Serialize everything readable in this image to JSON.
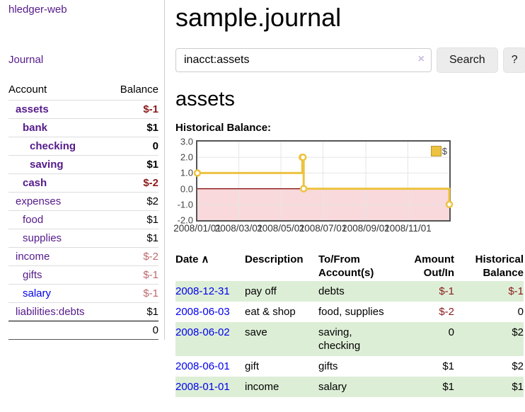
{
  "colors": {
    "link_purple": "#551a8b",
    "link_blue": "#0000ee",
    "negative_strong": "#8b1a1a",
    "negative_soft": "#bd6a6e",
    "row_green": "#ddeed6",
    "series_gold": "#edc240",
    "negative_region_pink": "#f9d9db",
    "zero_line_red": "#800000",
    "grid_gray": "#e6e6e6"
  },
  "sidebar": {
    "brand": "hledger-web",
    "nav": [
      {
        "label": "Journal"
      }
    ],
    "accounts_table": {
      "headers": {
        "account": "Account",
        "balance": "Balance"
      },
      "rows": [
        {
          "account": "assets",
          "indent": 1,
          "bold": true,
          "balance": "$-1",
          "balance_tone": "neg-strong",
          "link_color": "purple"
        },
        {
          "account": "bank",
          "indent": 2,
          "bold": true,
          "balance": "$1",
          "balance_tone": "pos",
          "link_color": "purple"
        },
        {
          "account": "checking",
          "indent": 3,
          "bold": true,
          "balance": "0",
          "balance_tone": "pos",
          "link_color": "purple"
        },
        {
          "account": "saving",
          "indent": 3,
          "bold": true,
          "balance": "$1",
          "balance_tone": "pos",
          "link_color": "purple"
        },
        {
          "account": "cash",
          "indent": 2,
          "bold": true,
          "balance": "$-2",
          "balance_tone": "neg-strong",
          "link_color": "purple"
        },
        {
          "account": "expenses",
          "indent": 1,
          "bold": false,
          "balance": "$2",
          "balance_tone": "pos",
          "link_color": "purple"
        },
        {
          "account": "food",
          "indent": 2,
          "bold": false,
          "balance": "$1",
          "balance_tone": "pos",
          "link_color": "purple"
        },
        {
          "account": "supplies",
          "indent": 2,
          "bold": false,
          "balance": "$1",
          "balance_tone": "pos",
          "link_color": "purple"
        },
        {
          "account": "income",
          "indent": 1,
          "bold": false,
          "balance": "$-2",
          "balance_tone": "neg-soft",
          "link_color": "purple"
        },
        {
          "account": "gifts",
          "indent": 2,
          "bold": false,
          "balance": "$-1",
          "balance_tone": "neg-soft",
          "link_color": "purple"
        },
        {
          "account": "salary",
          "indent": 2,
          "bold": false,
          "balance": "$-1",
          "balance_tone": "neg-soft",
          "link_color": "blue"
        },
        {
          "account": "liabilities:debts",
          "indent": 1,
          "bold": false,
          "balance": "$1",
          "balance_tone": "pos",
          "link_color": "purple"
        }
      ],
      "total": "0"
    }
  },
  "main": {
    "title": "sample.journal",
    "search": {
      "value": "inacct:assets",
      "clear_icon": "×",
      "button": "Search",
      "help_button": "?"
    },
    "account_heading": "assets",
    "chart_title": "Historical Balance:",
    "register": {
      "headers": {
        "date": "Date",
        "sort_icon": "∧",
        "description": "Description",
        "accounts": "To/From Account(s)",
        "amount": "Amount Out/In",
        "balance": "Historical Balance"
      },
      "rows": [
        {
          "date": "2008-12-31",
          "description": "pay off",
          "accounts": "debts",
          "amount": "$-1",
          "balance": "$-1",
          "shaded": true
        },
        {
          "date": "2008-06-03",
          "description": "eat & shop",
          "accounts": "food, supplies",
          "amount": "$-2",
          "balance": "0",
          "shaded": false
        },
        {
          "date": "2008-06-02",
          "description": "save",
          "accounts": "saving, checking",
          "amount": "0",
          "balance": "$2",
          "shaded": true
        },
        {
          "date": "2008-06-01",
          "description": "gift",
          "accounts": "gifts",
          "amount": "$1",
          "balance": "$2",
          "shaded": false
        },
        {
          "date": "2008-01-01",
          "description": "income",
          "accounts": "salary",
          "amount": "$1",
          "balance": "$1",
          "shaded": true
        }
      ]
    }
  },
  "chart_data": {
    "type": "line",
    "title": "Historical Balance",
    "step": true,
    "legend": [
      {
        "label": "$",
        "color": "#edc240"
      }
    ],
    "legend_position": "top-right",
    "points": [
      {
        "date": "2008-01-01",
        "value": 1
      },
      {
        "date": "2008-06-01",
        "value": 2
      },
      {
        "date": "2008-06-02",
        "value": 2
      },
      {
        "date": "2008-06-03",
        "value": 0
      },
      {
        "date": "2008-12-31",
        "value": -1
      }
    ],
    "xlim": [
      "2008-01-01",
      "2008-12-31"
    ],
    "ylim": [
      -2,
      3
    ],
    "yticks": [
      3.0,
      2.0,
      1.0,
      0.0,
      -1.0,
      -2.0
    ],
    "ytick_labels": [
      "3.0",
      "2.0",
      "1.0",
      "0.0",
      "-1.0",
      "-2.0"
    ],
    "xticks": [
      "2008-01-01",
      "2008-03-01",
      "2008-05-01",
      "2008-07-01",
      "2008-09-01",
      "2008-11-01"
    ],
    "xtick_labels": [
      "2008/01/01",
      "2008/03/01",
      "2008/05/01",
      "2008/07/01",
      "2008/09/01",
      "2008/11/01"
    ],
    "grid": true,
    "negative_fill": "#f9d9db",
    "zero_line_color": "#800000",
    "series_color": "#edc240"
  }
}
